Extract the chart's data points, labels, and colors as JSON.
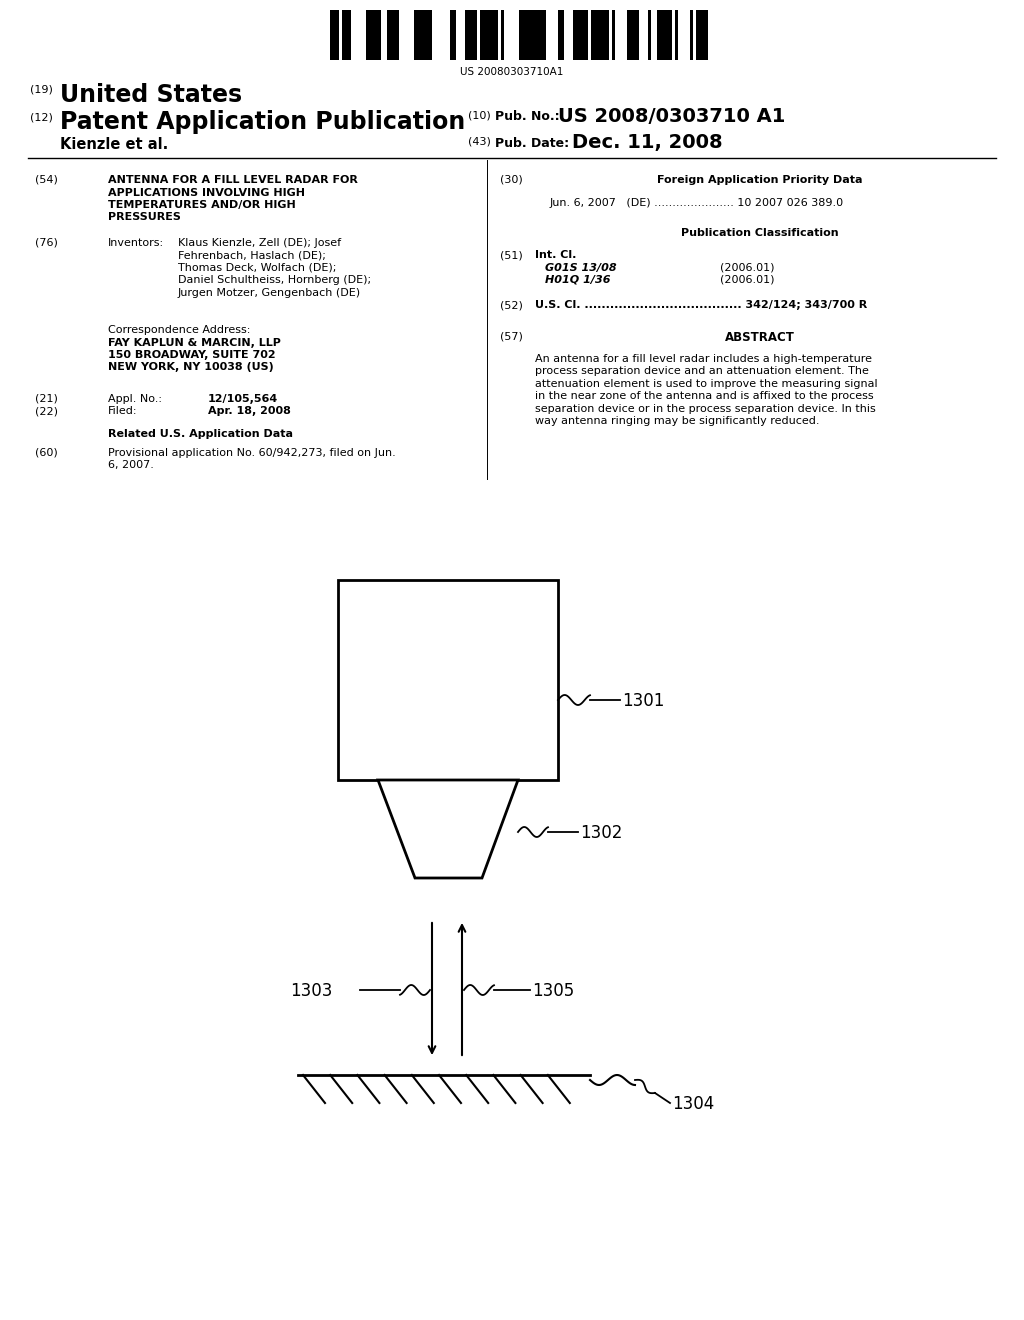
{
  "bg_color": "#ffffff",
  "barcode_text": "US 20080303710A1",
  "label_1301": "1301",
  "label_1302": "1302",
  "label_1303": "1303",
  "label_1304": "1304",
  "label_1305": "1305"
}
